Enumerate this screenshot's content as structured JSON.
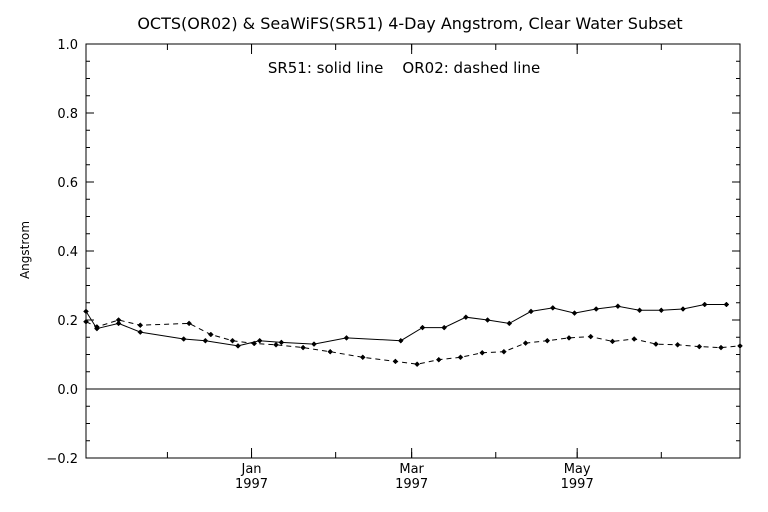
{
  "chart_data": {
    "type": "line",
    "title": "OCTS(OR02) & SeaWiFS(SR51) 4-Day Angstrom, Clear Water Subset",
    "annotation": "SR51: solid line    OR02: dashed line",
    "xlabel": "",
    "ylabel": "Angstrom",
    "xlim": [
      "1996-11-01",
      "1997-06-30"
    ],
    "ylim": [
      -0.2,
      1.0
    ],
    "y_ticks": [
      "−0.2",
      "0.0",
      "0.2",
      "0.4",
      "0.6",
      "0.8",
      "1.0"
    ],
    "x_ticks": [
      {
        "date": "1997-01-01",
        "month": "Jan",
        "year": "1997"
      },
      {
        "date": "1997-03-01",
        "month": "Mar",
        "year": "1997"
      },
      {
        "date": "1997-05-01",
        "month": "May",
        "year": "1997"
      }
    ],
    "reference_line": 0.0,
    "grid": false,
    "series": [
      {
        "name": "SR51",
        "style": "solid",
        "color": "#000000",
        "x": [
          "1996-11-01",
          "1996-11-05",
          "1996-11-13",
          "1996-11-21",
          "1996-12-07",
          "1996-12-15",
          "1996-12-27",
          "1997-01-04",
          "1997-01-12",
          "1997-01-24",
          "1997-02-05",
          "1997-02-25",
          "1997-03-05",
          "1997-03-13",
          "1997-03-21",
          "1997-03-29",
          "1997-04-06",
          "1997-04-14",
          "1997-04-22",
          "1997-04-30",
          "1997-05-08",
          "1997-05-16",
          "1997-05-24",
          "1997-06-01",
          "1997-06-09",
          "1997-06-17",
          "1997-06-25"
        ],
        "values": [
          0.225,
          0.175,
          0.19,
          0.165,
          0.145,
          0.14,
          0.125,
          0.14,
          0.135,
          0.13,
          0.148,
          0.14,
          0.178,
          0.178,
          0.208,
          0.2,
          0.19,
          0.225,
          0.235,
          0.22,
          0.232,
          0.24,
          0.228,
          0.228,
          0.232,
          0.245,
          0.245
        ]
      },
      {
        "name": "OR02",
        "style": "dashed",
        "color": "#000000",
        "x": [
          "1996-11-01",
          "1996-11-05",
          "1996-11-13",
          "1996-11-21",
          "1996-12-09",
          "1996-12-17",
          "1996-12-25",
          "1997-01-02",
          "1997-01-10",
          "1997-01-20",
          "1997-01-30",
          "1997-02-11",
          "1997-02-23",
          "1997-03-03",
          "1997-03-11",
          "1997-03-19",
          "1997-03-27",
          "1997-04-04",
          "1997-04-12",
          "1997-04-20",
          "1997-04-28",
          "1997-05-06",
          "1997-05-14",
          "1997-05-22",
          "1997-05-30",
          "1997-06-07",
          "1997-06-15",
          "1997-06-23",
          "1997-06-30"
        ],
        "values": [
          0.195,
          0.18,
          0.2,
          0.185,
          0.19,
          0.158,
          0.14,
          0.132,
          0.128,
          0.12,
          0.108,
          0.092,
          0.08,
          0.072,
          0.085,
          0.092,
          0.105,
          0.108,
          0.133,
          0.14,
          0.148,
          0.152,
          0.138,
          0.145,
          0.13,
          0.128,
          0.123,
          0.12,
          0.125
        ]
      }
    ]
  }
}
